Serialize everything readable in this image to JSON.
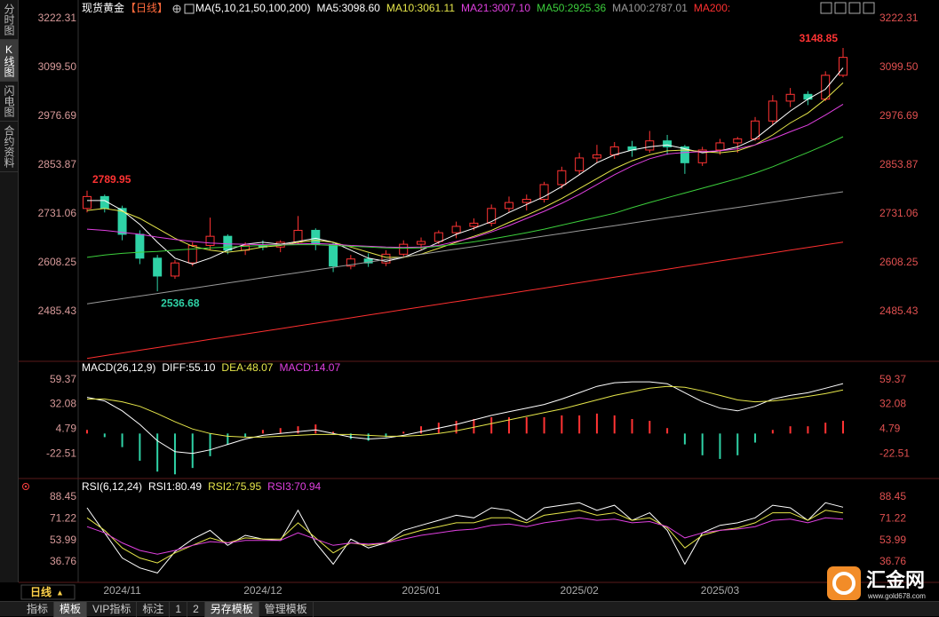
{
  "ui": {
    "side_tabs": [
      "分时图",
      "K线图",
      "闪电图",
      "合约资料"
    ],
    "period": "日线",
    "period_arrow": "▲",
    "bottom_tabs": [
      "指标",
      "模板",
      "VIP指标",
      "标注",
      "1",
      "2",
      "另存模板",
      "管理模板"
    ],
    "watermark": {
      "name": "汇金网",
      "url": "www.gold678.com"
    }
  },
  "chart_data": [
    {
      "type": "candlestick",
      "title": "现货黄金",
      "subtitle": "【日线】",
      "indicator": "MA(5,10,21,50,100,200)",
      "categories": [
        null,
        null,
        "2024/11",
        null,
        null,
        null,
        null,
        null,
        null,
        null,
        "2024/12",
        null,
        null,
        null,
        null,
        null,
        null,
        null,
        null,
        "2025/01",
        null,
        null,
        null,
        null,
        null,
        null,
        null,
        null,
        "2025/02",
        null,
        null,
        null,
        null,
        null,
        null,
        null,
        "2025/03",
        null,
        null,
        null,
        null,
        null,
        null,
        null
      ],
      "up_color": "#ff3333",
      "down_color": "#2fd2a6",
      "ohlc": [
        [
          2745,
          2789.95,
          2735,
          2775
        ],
        [
          2775,
          2780,
          2735,
          2745
        ],
        [
          2745,
          2752,
          2665,
          2680
        ],
        [
          2680,
          2690,
          2605,
          2620
        ],
        [
          2620,
          2628,
          2536.68,
          2575
        ],
        [
          2575,
          2615,
          2568,
          2608
        ],
        [
          2608,
          2660,
          2600,
          2652
        ],
        [
          2652,
          2722,
          2640,
          2675
        ],
        [
          2675,
          2680,
          2630,
          2640
        ],
        [
          2640,
          2660,
          2628,
          2652
        ],
        [
          2652,
          2665,
          2640,
          2648
        ],
        [
          2648,
          2665,
          2635,
          2660
        ],
        [
          2660,
          2726,
          2655,
          2690
        ],
        [
          2690,
          2695,
          2640,
          2655
        ],
        [
          2655,
          2660,
          2585,
          2600
        ],
        [
          2600,
          2628,
          2592,
          2618
        ],
        [
          2618,
          2632,
          2598,
          2608
        ],
        [
          2608,
          2640,
          2600,
          2630
        ],
        [
          2630,
          2665,
          2622,
          2655
        ],
        [
          2655,
          2672,
          2640,
          2662
        ],
        [
          2662,
          2690,
          2655,
          2684
        ],
        [
          2684,
          2712,
          2670,
          2700
        ],
        [
          2700,
          2720,
          2690,
          2708
        ],
        [
          2708,
          2755,
          2700,
          2745
        ],
        [
          2745,
          2775,
          2735,
          2760
        ],
        [
          2760,
          2780,
          2740,
          2768
        ],
        [
          2768,
          2812,
          2760,
          2805
        ],
        [
          2805,
          2850,
          2795,
          2840
        ],
        [
          2840,
          2885,
          2830,
          2872
        ],
        [
          2872,
          2905,
          2860,
          2880
        ],
        [
          2880,
          2912,
          2870,
          2900
        ],
        [
          2900,
          2915,
          2875,
          2892
        ],
        [
          2892,
          2940,
          2885,
          2915
        ],
        [
          2915,
          2930,
          2880,
          2900
        ],
        [
          2900,
          2905,
          2832,
          2860
        ],
        [
          2860,
          2900,
          2852,
          2892
        ],
        [
          2892,
          2920,
          2880,
          2910
        ],
        [
          2910,
          2925,
          2885,
          2920
        ],
        [
          2920,
          2975,
          2915,
          2965
        ],
        [
          2965,
          3030,
          2955,
          3015
        ],
        [
          3015,
          3048,
          3000,
          3032
        ],
        [
          3032,
          3040,
          3005,
          3020
        ],
        [
          3020,
          3090,
          3015,
          3080
        ],
        [
          3080,
          3148.85,
          3075,
          3125
        ]
      ],
      "series": [
        {
          "name": "MA5:3098.60",
          "color": "#ffffff",
          "values": [
            2765,
            2765,
            2740,
            2705,
            2660,
            2620,
            2605,
            2620,
            2640,
            2655,
            2660,
            2655,
            2662,
            2670,
            2660,
            2640,
            2620,
            2612,
            2622,
            2640,
            2660,
            2680,
            2695,
            2712,
            2735,
            2755,
            2775,
            2800,
            2830,
            2860,
            2880,
            2892,
            2900,
            2905,
            2895,
            2885,
            2890,
            2900,
            2920,
            2955,
            2990,
            3020,
            3045,
            3098.6
          ]
        },
        {
          "name": "MA10:3061.11",
          "color": "#e6e64a",
          "values": [
            2740,
            2745,
            2738,
            2720,
            2695,
            2670,
            2650,
            2640,
            2635,
            2640,
            2648,
            2652,
            2660,
            2665,
            2660,
            2648,
            2635,
            2622,
            2622,
            2630,
            2645,
            2660,
            2675,
            2690,
            2710,
            2728,
            2748,
            2770,
            2795,
            2820,
            2845,
            2865,
            2880,
            2890,
            2892,
            2888,
            2885,
            2890,
            2905,
            2930,
            2960,
            2985,
            3020,
            3061.11
          ]
        },
        {
          "name": "MA21:3007.10",
          "color": "#e040e0",
          "values": [
            2693,
            2690,
            2685,
            2680,
            2673,
            2667,
            2662,
            2658,
            2656,
            2655,
            2654,
            2654,
            2656,
            2657,
            2655,
            2652,
            2650,
            2648,
            2647,
            2648,
            2652,
            2662,
            2672,
            2686,
            2702,
            2720,
            2738,
            2758,
            2780,
            2805,
            2830,
            2852,
            2870,
            2882,
            2886,
            2888,
            2890,
            2895,
            2905,
            2920,
            2938,
            2955,
            2980,
            3007.1
          ]
        },
        {
          "name": "MA50:2925.36",
          "color": "#3ccf3c",
          "values": [
            2622,
            2628,
            2632,
            2635,
            2637,
            2640,
            2643,
            2646,
            2648,
            2650,
            2652,
            2653,
            2654,
            2654,
            2652,
            2650,
            2648,
            2646,
            2645,
            2646,
            2650,
            2655,
            2661,
            2668,
            2676,
            2684,
            2693,
            2703,
            2713,
            2723,
            2733,
            2747,
            2760,
            2772,
            2784,
            2796,
            2808,
            2820,
            2834,
            2850,
            2868,
            2886,
            2905,
            2925.36
          ]
        },
        {
          "name": "MA100:2787.01",
          "color": "#9a9a9a",
          "values": [
            2505,
            2511.6,
            2518.1,
            2524.7,
            2531.2,
            2537.8,
            2544.4,
            2550.9,
            2557.5,
            2564,
            2570.6,
            2577.2,
            2583.7,
            2590.3,
            2596.8,
            2603.4,
            2610,
            2616.5,
            2623.1,
            2629.6,
            2636.2,
            2642.8,
            2649.3,
            2655.9,
            2662.4,
            2669,
            2675.6,
            2682.1,
            2688.7,
            2695.2,
            2701.8,
            2708.4,
            2714.9,
            2721.5,
            2728,
            2734.6,
            2741.2,
            2747.7,
            2754.3,
            2760.8,
            2767.4,
            2774,
            2780.5,
            2787.01
          ]
        },
        {
          "name": "MA200:",
          "color": "#ff3030",
          "values": [
            2368,
            2374.8,
            2381.6,
            2388.4,
            2395.2,
            2402,
            2408.8,
            2415.6,
            2422.4,
            2429.2,
            2436,
            2442.8,
            2449.6,
            2456.4,
            2463.2,
            2470,
            2476.8,
            2483.6,
            2490.4,
            2497.2,
            2504,
            2510.8,
            2517.6,
            2524.4,
            2531.2,
            2538,
            2544.8,
            2551.6,
            2558.4,
            2565.2,
            2572,
            2578.8,
            2585.6,
            2592.4,
            2599.2,
            2606,
            2612.8,
            2619.6,
            2626.4,
            2633.2,
            2640,
            2646.8,
            2653.6,
            2660.4
          ]
        }
      ],
      "ylim": [
        2365,
        3247
      ],
      "yticks": [
        2485.43,
        2608.25,
        2731.06,
        2853.87,
        2976.69,
        {
          "value": 3099.5,
          "label": "3099.50"
        },
        3222.31
      ],
      "grid": false
    },
    {
      "type": "macd",
      "title": "MACD(26,12,9)",
      "series": [
        {
          "name": "DIFF:55.10",
          "color": "#ffffff",
          "values": [
            40,
            36,
            25,
            10,
            -8,
            -20,
            -22,
            -18,
            -12,
            -6,
            -2,
            0,
            2,
            4,
            0,
            -4,
            -6,
            -5,
            -2,
            2,
            6,
            10,
            15,
            20,
            24,
            28,
            32,
            38,
            45,
            52,
            56,
            57,
            57,
            55,
            45,
            35,
            28,
            25,
            30,
            38,
            42,
            45,
            50,
            55.1
          ]
        },
        {
          "name": "DEA:48.07",
          "color": "#e6e64a",
          "values": [
            38,
            38,
            35,
            30,
            22,
            13,
            5,
            0,
            -3,
            -4,
            -4,
            -3,
            -2,
            -1,
            -1,
            -1,
            -2,
            -3,
            -3,
            -2,
            0,
            3,
            7,
            11,
            15,
            19,
            23,
            27,
            32,
            37,
            42,
            46,
            50,
            52,
            51,
            47,
            42,
            37,
            35,
            36,
            38,
            41,
            44,
            48.07
          ]
        },
        {
          "name": "MACD:14.07",
          "color": "#e040e0",
          "type": "bar",
          "up_color": "#ff3333",
          "down_color": "#2fd2a6",
          "values": [
            4,
            -4,
            -15,
            -30,
            -42,
            -45,
            -38,
            -25,
            -12,
            -4,
            4,
            6,
            8,
            10,
            2,
            -6,
            -8,
            -4,
            2,
            8,
            12,
            14,
            16,
            18,
            18,
            18,
            18,
            20,
            20,
            22,
            20,
            16,
            14,
            6,
            -12,
            -24,
            -28,
            -24,
            -10,
            4,
            8,
            8,
            12,
            14.07
          ]
        }
      ],
      "ylim": [
        -45.7,
        76.7
      ],
      "yticks": [
        -22.51,
        4.79,
        32.08,
        59.37
      ],
      "grid": false
    },
    {
      "type": "line",
      "title": "RSI(6,12,24)",
      "series": [
        {
          "name": "RSI1:80.49",
          "color": "#ffffff",
          "values": [
            80,
            60,
            40,
            32,
            28,
            45,
            55,
            62,
            50,
            58,
            55,
            54,
            78,
            52,
            35,
            55,
            48,
            52,
            62,
            66,
            70,
            74,
            72,
            80,
            78,
            70,
            80,
            82,
            84,
            78,
            82,
            70,
            76,
            62,
            35,
            60,
            66,
            68,
            72,
            82,
            80,
            70,
            84,
            80.49
          ]
        },
        {
          "name": "RSI2:75.95",
          "color": "#e6e64a",
          "values": [
            72,
            62,
            48,
            40,
            36,
            44,
            50,
            56,
            52,
            56,
            55,
            55,
            68,
            56,
            44,
            52,
            50,
            52,
            58,
            62,
            65,
            68,
            68,
            72,
            72,
            68,
            74,
            76,
            78,
            74,
            76,
            70,
            72,
            64,
            48,
            58,
            62,
            64,
            68,
            76,
            76,
            70,
            78,
            75.95
          ]
        },
        {
          "name": "RSI3:70.94",
          "color": "#e040e0",
          "values": [
            65,
            60,
            52,
            46,
            43,
            46,
            50,
            53,
            52,
            54,
            54,
            54,
            60,
            55,
            50,
            52,
            51,
            52,
            55,
            58,
            60,
            62,
            63,
            66,
            67,
            65,
            68,
            70,
            72,
            70,
            71,
            68,
            69,
            65,
            56,
            60,
            62,
            63,
            65,
            70,
            71,
            68,
            72,
            70.94
          ]
        }
      ],
      "ylim": [
        21.2,
        99.1
      ],
      "yticks": [
        36.76,
        53.99,
        71.22,
        88.45
      ],
      "grid": false
    }
  ]
}
